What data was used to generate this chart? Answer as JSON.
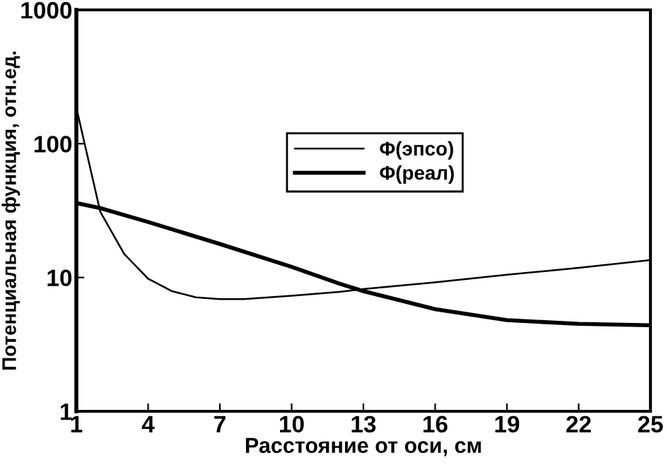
{
  "chart_data": {
    "type": "line",
    "xlabel": "Расстояние от оси, см",
    "ylabel": "Потенциальная функция, отн.ед.",
    "log": "y",
    "xlim": [
      1,
      25
    ],
    "xticks": [
      1,
      4,
      7,
      10,
      13,
      16,
      19,
      22,
      25
    ],
    "ylim": [
      1,
      1000
    ],
    "yticks": [
      1,
      10,
      100,
      1000
    ],
    "legend": "right",
    "grid": false,
    "marker": "none",
    "line_style": "solid",
    "series": [
      {
        "name": "Φ(эпсо)",
        "color": "#000000",
        "x": [
          1,
          2,
          3,
          4,
          5,
          6,
          7,
          8,
          10,
          12,
          13,
          16,
          19,
          22,
          25
        ],
        "values": [
          186,
          31,
          15,
          9.8,
          7.9,
          7.1,
          6.9,
          6.9,
          7.3,
          7.8,
          8.2,
          9.2,
          10.5,
          11.8,
          13.5
        ]
      },
      {
        "name": "Φ(реал)",
        "color": "#000000",
        "x": [
          1,
          2,
          4,
          7,
          10,
          12,
          13,
          16,
          19,
          22,
          25
        ],
        "values": [
          36,
          33,
          26,
          17.8,
          12,
          9,
          7.9,
          5.8,
          4.8,
          4.5,
          4.4
        ]
      }
    ]
  }
}
